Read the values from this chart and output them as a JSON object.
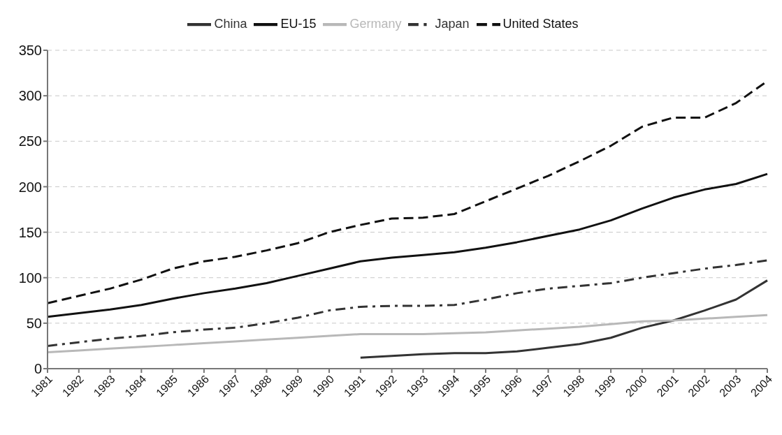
{
  "chart_data": {
    "type": "line",
    "categories": [
      "1981",
      "1982",
      "1983",
      "1984",
      "1985",
      "1986",
      "1987",
      "1988",
      "1989",
      "1990",
      "1991",
      "1992",
      "1993",
      "1994",
      "1995",
      "1996",
      "1997",
      "1998",
      "1999",
      "2000",
      "2001",
      "2002",
      "2003",
      "2004"
    ],
    "series": [
      {
        "name": "Japan",
        "color": "#333333",
        "line_style": "dashdot",
        "values": [
          25,
          29,
          33,
          36,
          40,
          43,
          45,
          50,
          56,
          64,
          68,
          69,
          69,
          70,
          76,
          83,
          88,
          91,
          94,
          100,
          105,
          110,
          114,
          119
        ]
      },
      {
        "name": "United States",
        "color": "#111111",
        "line_style": "dashed",
        "values": [
          72,
          80,
          88,
          98,
          110,
          118,
          123,
          130,
          138,
          150,
          158,
          165,
          166,
          170,
          184,
          198,
          212,
          228,
          245,
          266,
          276,
          276,
          292,
          316
        ]
      },
      {
        "name": "EU-15",
        "color": "#111111",
        "line_style": "solid",
        "values": [
          57,
          61,
          65,
          70,
          77,
          83,
          88,
          94,
          102,
          110,
          118,
          122,
          125,
          128,
          133,
          139,
          146,
          153,
          163,
          176,
          188,
          197,
          203,
          214
        ]
      },
      {
        "name": "China",
        "color": "#333333",
        "line_style": "solid",
        "values": [
          null,
          null,
          null,
          null,
          null,
          null,
          null,
          null,
          null,
          null,
          12,
          14,
          16,
          17,
          17,
          19,
          23,
          27,
          34,
          45,
          53,
          64,
          76,
          97
        ]
      },
      {
        "name": "Germany",
        "color": "#b8b8b8",
        "line_style": "solid",
        "values": [
          18,
          20,
          22,
          24,
          26,
          28,
          30,
          32,
          34,
          36,
          38,
          38,
          38,
          39,
          40,
          42,
          44,
          46,
          49,
          52,
          53,
          55,
          57,
          59
        ]
      }
    ],
    "ylim": [
      0,
      350
    ],
    "yticks": [
      0,
      50,
      100,
      150,
      200,
      250,
      300,
      350
    ],
    "grid": "y",
    "legend": "top",
    "marker": "none"
  }
}
